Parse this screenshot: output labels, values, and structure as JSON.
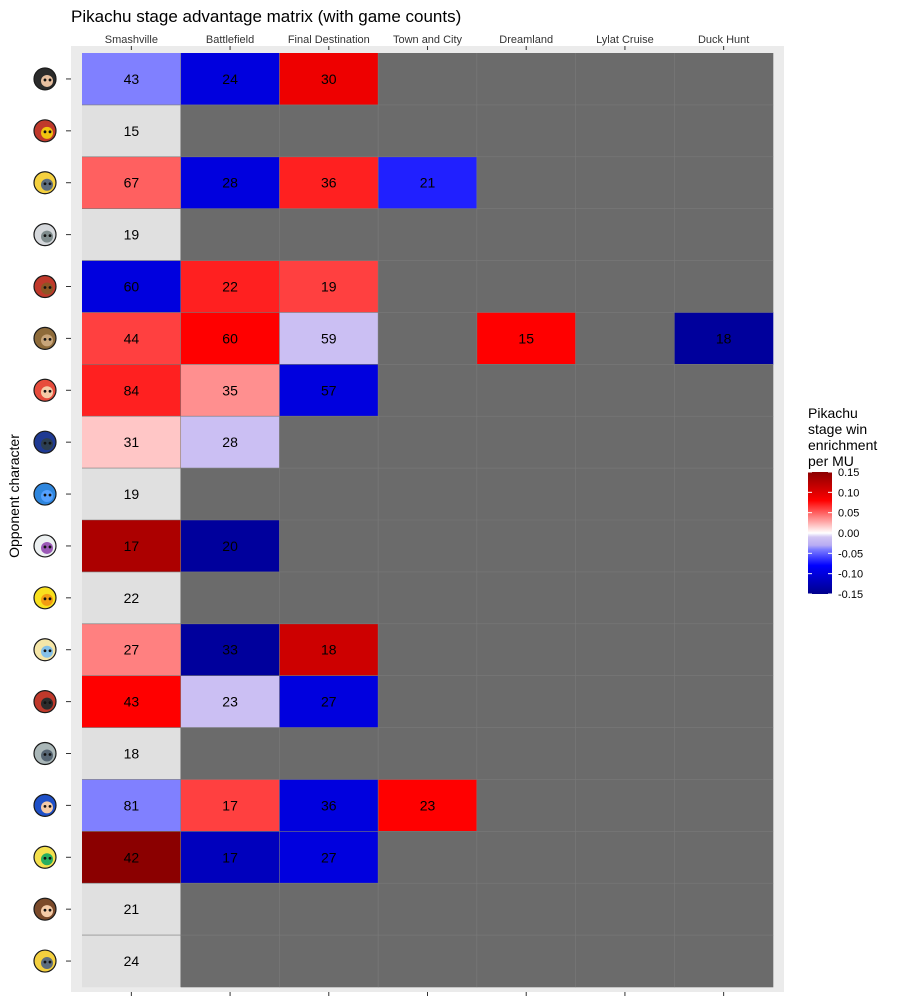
{
  "chart_data": {
    "type": "heatmap",
    "title": "Pikachu stage advantage matrix (with game counts)",
    "ylabel": "Opponent character",
    "xlabel": "",
    "columns": [
      "Smashville",
      "Battlefield",
      "Final Destination",
      "Town and City",
      "Dreamland",
      "Lylat Cruise",
      "Duck Hunt"
    ],
    "rows": [
      {
        "icon": "bayonetta-icon",
        "cells": [
          {
            "count": 43,
            "value": -0.04
          },
          {
            "count": 24,
            "value": -0.1
          },
          {
            "count": 30,
            "value": 0.09
          },
          null,
          null,
          null,
          null
        ]
      },
      {
        "icon": "captain-falcon-icon",
        "cells": [
          {
            "count": 15,
            "value": null
          },
          null,
          null,
          null,
          null,
          null,
          null
        ]
      },
      {
        "icon": "cloud-icon",
        "cells": [
          {
            "count": 67,
            "value": 0.05
          },
          {
            "count": 28,
            "value": -0.1
          },
          {
            "count": 36,
            "value": 0.07
          },
          {
            "count": 21,
            "value": -0.07
          },
          null,
          null,
          null
        ]
      },
      {
        "icon": "corrin-icon",
        "cells": [
          {
            "count": 19,
            "value": null
          },
          null,
          null,
          null,
          null,
          null,
          null
        ]
      },
      {
        "icon": "diddy-kong-icon",
        "cells": [
          {
            "count": 60,
            "value": -0.1
          },
          {
            "count": 22,
            "value": 0.07
          },
          {
            "count": 19,
            "value": 0.06
          },
          null,
          null,
          null,
          null
        ]
      },
      {
        "icon": "fox-icon",
        "cells": [
          {
            "count": 44,
            "value": 0.06
          },
          {
            "count": 60,
            "value": 0.08
          },
          {
            "count": 59,
            "value": -0.015
          },
          null,
          {
            "count": 15,
            "value": 0.08
          },
          null,
          {
            "count": 18,
            "value": -0.14
          }
        ]
      },
      {
        "icon": "mario-icon",
        "cells": [
          {
            "count": 84,
            "value": 0.07
          },
          {
            "count": 35,
            "value": 0.035
          },
          {
            "count": 57,
            "value": -0.1
          },
          null,
          null,
          null,
          null
        ]
      },
      {
        "icon": "marth-icon",
        "cells": [
          {
            "count": 31,
            "value": 0.018
          },
          {
            "count": 28,
            "value": -0.015
          },
          null,
          null,
          null,
          null,
          null
        ]
      },
      {
        "icon": "mega-man-icon",
        "cells": [
          {
            "count": 19,
            "value": null
          },
          null,
          null,
          null,
          null,
          null,
          null
        ]
      },
      {
        "icon": "mewtwo-icon",
        "cells": [
          {
            "count": 17,
            "value": 0.13
          },
          {
            "count": 20,
            "value": -0.14
          },
          null,
          null,
          null,
          null,
          null
        ]
      },
      {
        "icon": "pikachu-icon",
        "cells": [
          {
            "count": 22,
            "value": null
          },
          null,
          null,
          null,
          null,
          null,
          null
        ]
      },
      {
        "icon": "rosalina-icon",
        "cells": [
          {
            "count": 27,
            "value": 0.04
          },
          {
            "count": 33,
            "value": -0.14
          },
          {
            "count": 18,
            "value": 0.11
          },
          null,
          null,
          null,
          null
        ]
      },
      {
        "icon": "ryu-icon",
        "cells": [
          {
            "count": 43,
            "value": 0.08
          },
          {
            "count": 23,
            "value": -0.015
          },
          {
            "count": 27,
            "value": -0.1
          },
          null,
          null,
          null,
          null
        ]
      },
      {
        "icon": "robot-icon",
        "cells": [
          {
            "count": 18,
            "value": null
          },
          null,
          null,
          null,
          null,
          null,
          null
        ]
      },
      {
        "icon": "sonic-icon",
        "cells": [
          {
            "count": 81,
            "value": -0.04
          },
          {
            "count": 17,
            "value": 0.06
          },
          {
            "count": 36,
            "value": -0.1
          },
          {
            "count": 23,
            "value": 0.08
          },
          null,
          null,
          null
        ]
      },
      {
        "icon": "toon-link-icon",
        "cells": [
          {
            "count": 42,
            "value": 0.15
          },
          {
            "count": 17,
            "value": -0.12
          },
          {
            "count": 27,
            "value": -0.1
          },
          null,
          null,
          null,
          null
        ]
      },
      {
        "icon": "villager-icon",
        "cells": [
          {
            "count": 21,
            "value": null
          },
          null,
          null,
          null,
          null,
          null,
          null
        ]
      },
      {
        "icon": "zero-suit-samus-icon",
        "cells": [
          {
            "count": 24,
            "value": null
          },
          null,
          null,
          null,
          null,
          null,
          null
        ]
      }
    ],
    "legend": {
      "title": "Pikachu stage win enrichment per MU",
      "ticks": [
        "0.15",
        "0.10",
        "0.05",
        "0.00",
        "-0.05",
        "-0.10",
        "-0.15"
      ],
      "range": [
        -0.15,
        0.15
      ],
      "placement": "right"
    },
    "colors": {
      "panel_bg": "#ebebeb",
      "missing": "#6b6b6b",
      "na_fill": "#e0e0e0",
      "grid": "#7a7a7a",
      "high": "#8b0000",
      "mid_high": "#ff0000",
      "mid": "#ffffff",
      "mid_low": "#0000ff",
      "low": "#00008b"
    }
  }
}
